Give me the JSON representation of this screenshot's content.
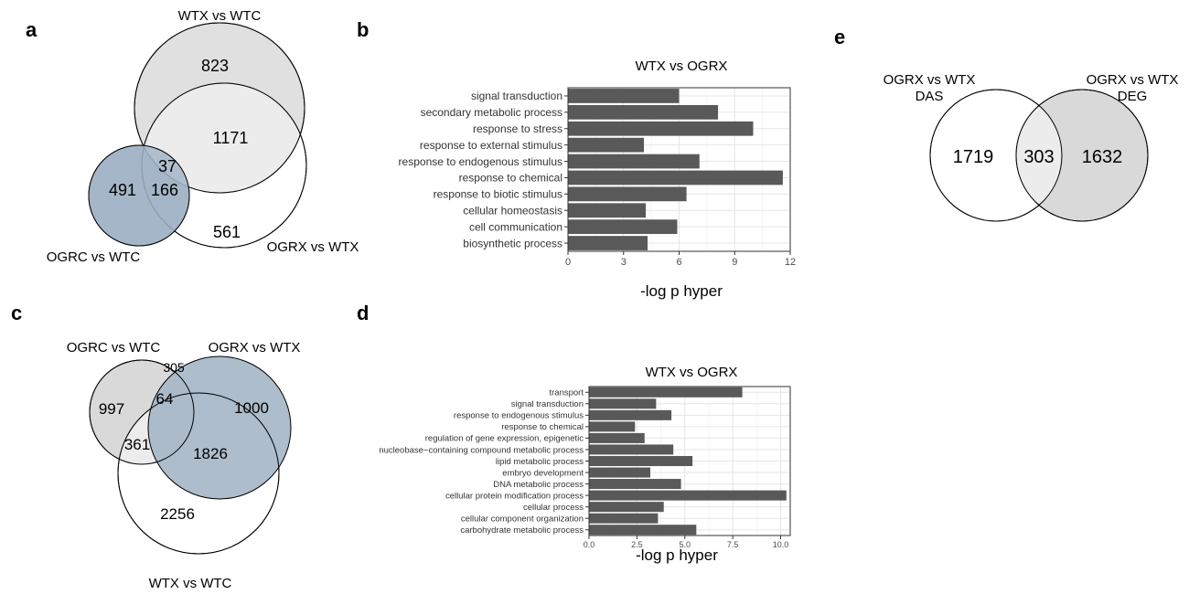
{
  "colors": {
    "bar_fill": "#595959",
    "panel_border": "#333333",
    "grid_major": "#e6e6e6",
    "grid_minor": "#f2f2f2",
    "venn_blue": "#a4b6c7",
    "venn_light_gray": "#e0e0e0",
    "venn_mid_gray": "#d9d9d9",
    "venn_lighter_gray": "#ececec",
    "venn_white": "#ffffff"
  },
  "panels": {
    "a": {
      "letter": "a",
      "sets": [
        "WTX vs WTC",
        "OGRC vs WTC",
        "OGRX vs WTX"
      ],
      "counts": {
        "wtx_only": "823",
        "wtx_ogrx": "1171",
        "all_three": "37",
        "ogrc_only": "491",
        "ogrc_ogrx": "166",
        "ogrx_only": "561"
      }
    },
    "b": {
      "letter": "b"
    },
    "c": {
      "letter": "c",
      "sets": [
        "OGRC vs WTC",
        "OGRX vs WTX",
        "WTX vs WTC"
      ],
      "counts": {
        "ogrc_only": "997",
        "ogrc_ogrx": "305",
        "all_three": "64",
        "ogrx_only": "1000",
        "ogrc_wtx": "361",
        "ogrx_wtx": "1826",
        "wtx_only": "2256"
      }
    },
    "d": {
      "letter": "d"
    },
    "e": {
      "letter": "e",
      "left_label_line1": "OGRX vs WTX",
      "left_label_line2": "DAS",
      "right_label_line1": "OGRX vs WTX",
      "right_label_line2": "DEG",
      "counts": {
        "left_only": "1719",
        "overlap": "303",
        "right_only": "1632"
      }
    }
  },
  "chart_data": [
    {
      "panel": "b",
      "type": "bar",
      "orientation": "horizontal",
      "title": "WTX vs OGRX",
      "xlabel": "-log p hyper",
      "ylabel": "",
      "categories": [
        "signal transduction",
        "secondary metabolic process",
        "response to stress",
        "response to external stimulus",
        "response to endogenous stimulus",
        "response to chemical",
        "response to biotic stimulus",
        "cellular homeostasis",
        "cell communication",
        "biosynthetic process"
      ],
      "values": [
        6.0,
        8.1,
        10.0,
        4.1,
        7.1,
        11.6,
        6.4,
        4.2,
        5.9,
        4.3
      ],
      "xlim": [
        0,
        12
      ],
      "xticks": [
        "0",
        "3",
        "6",
        "9",
        "12"
      ],
      "xtick_values": [
        0,
        3,
        6,
        9,
        12
      ],
      "grid": true
    },
    {
      "panel": "d",
      "type": "bar",
      "orientation": "horizontal",
      "title": "WTX vs OGRX",
      "xlabel": "-log p hyper",
      "ylabel": "",
      "categories": [
        "transport",
        "signal transduction",
        "response to endogenous stimulus",
        "response to chemical",
        "regulation of gene expression, epigenetic",
        "nucleobase−containing compound metabolic process",
        "lipid metabolic process",
        "embryo development",
        "DNA metabolic process",
        "cellular protein modification process",
        "cellular process",
        "cellular component organization",
        "carbohydrate metabolic process"
      ],
      "values": [
        8.0,
        3.5,
        4.3,
        2.4,
        2.9,
        4.4,
        5.4,
        3.2,
        4.8,
        10.3,
        3.9,
        3.6,
        5.6
      ],
      "xlim": [
        0,
        10.5
      ],
      "xticks": [
        "0.0",
        "2.5",
        "5.0",
        "7.5",
        "10.0"
      ],
      "xtick_values": [
        0,
        2.5,
        5,
        7.5,
        10
      ],
      "grid": true
    }
  ]
}
